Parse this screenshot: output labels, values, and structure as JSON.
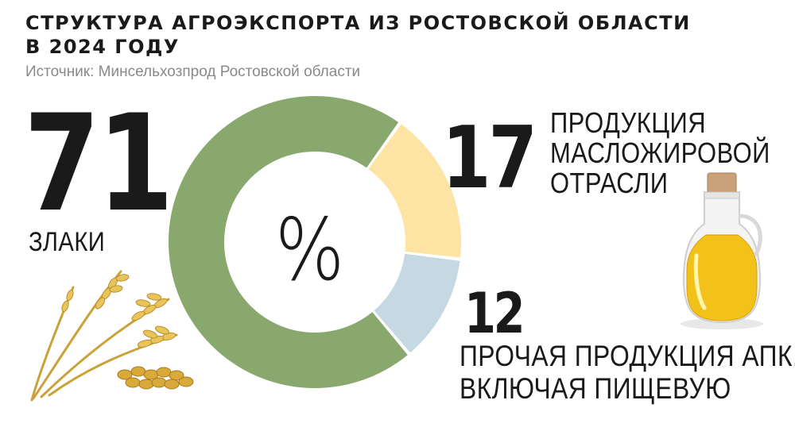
{
  "title_lines": [
    "СТРУКТУРА АГРОЭКСПОРТА ИЗ РОСТОВСКОЙ ОБЛАСТИ",
    "В 2024 ГОДУ"
  ],
  "source": "Источник: Минсельхозпрод Ростовской области",
  "center_symbol": "%",
  "colors": {
    "grain": "#89a86e",
    "oil": "#fde3a4",
    "other": "#c6d8e1",
    "text": "#1a1a1a",
    "source_text": "#8a8a8a"
  },
  "icons": [
    "wheat-icon",
    "oil-bottle-icon"
  ],
  "chart_data": {
    "type": "pie",
    "variant": "donut",
    "unit": "%",
    "slices": [
      {
        "value": 71,
        "value_label": "71",
        "label_lines": [
          "ЗЛАКИ"
        ],
        "color": "#89a86e"
      },
      {
        "value": 17,
        "value_label": "17",
        "label_lines": [
          "ПРОДУКЦИЯ",
          "МАСЛОЖИРОВОЙ",
          "ОТРАСЛИ"
        ],
        "color": "#fde3a4"
      },
      {
        "value": 12,
        "value_label": "12",
        "label_lines": [
          "ПРОЧАЯ ПРОДУКЦИЯ АПК,",
          "ВКЛЮЧАЯ ПИЩЕВУЮ"
        ],
        "color": "#c6d8e1"
      }
    ],
    "legend": "none"
  }
}
